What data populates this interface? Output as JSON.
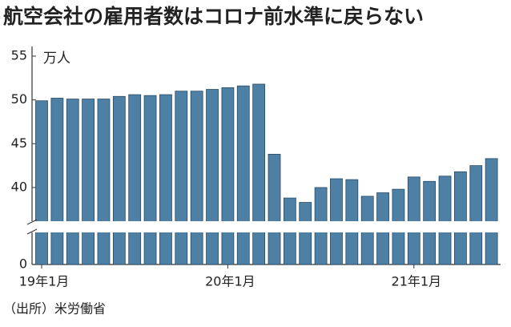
{
  "chart_data": {
    "type": "bar",
    "title": "航空会社の雇用者数はコロナ前水準に戻らない",
    "unit": "万人",
    "source": "（出所）米労働省",
    "categories": [
      "19年1月",
      null,
      null,
      null,
      null,
      null,
      null,
      null,
      null,
      null,
      null,
      null,
      "20年1月",
      null,
      null,
      null,
      null,
      null,
      null,
      null,
      null,
      null,
      null,
      null,
      "21年1月",
      null,
      null,
      null,
      null,
      null
    ],
    "values": [
      49.9,
      50.2,
      50.1,
      50.1,
      50.1,
      50.4,
      50.6,
      50.5,
      50.6,
      51.0,
      51.0,
      51.2,
      51.4,
      51.6,
      51.8,
      43.8,
      38.8,
      38.3,
      40.0,
      41.0,
      40.9,
      39.0,
      39.4,
      39.8,
      41.2,
      40.7,
      41.3,
      41.8,
      42.5,
      43.3
    ],
    "color": "#4e80a6",
    "ylim": [
      0,
      55
    ],
    "yticks": [
      0,
      40,
      45,
      50,
      55
    ],
    "broken_axis": true
  }
}
